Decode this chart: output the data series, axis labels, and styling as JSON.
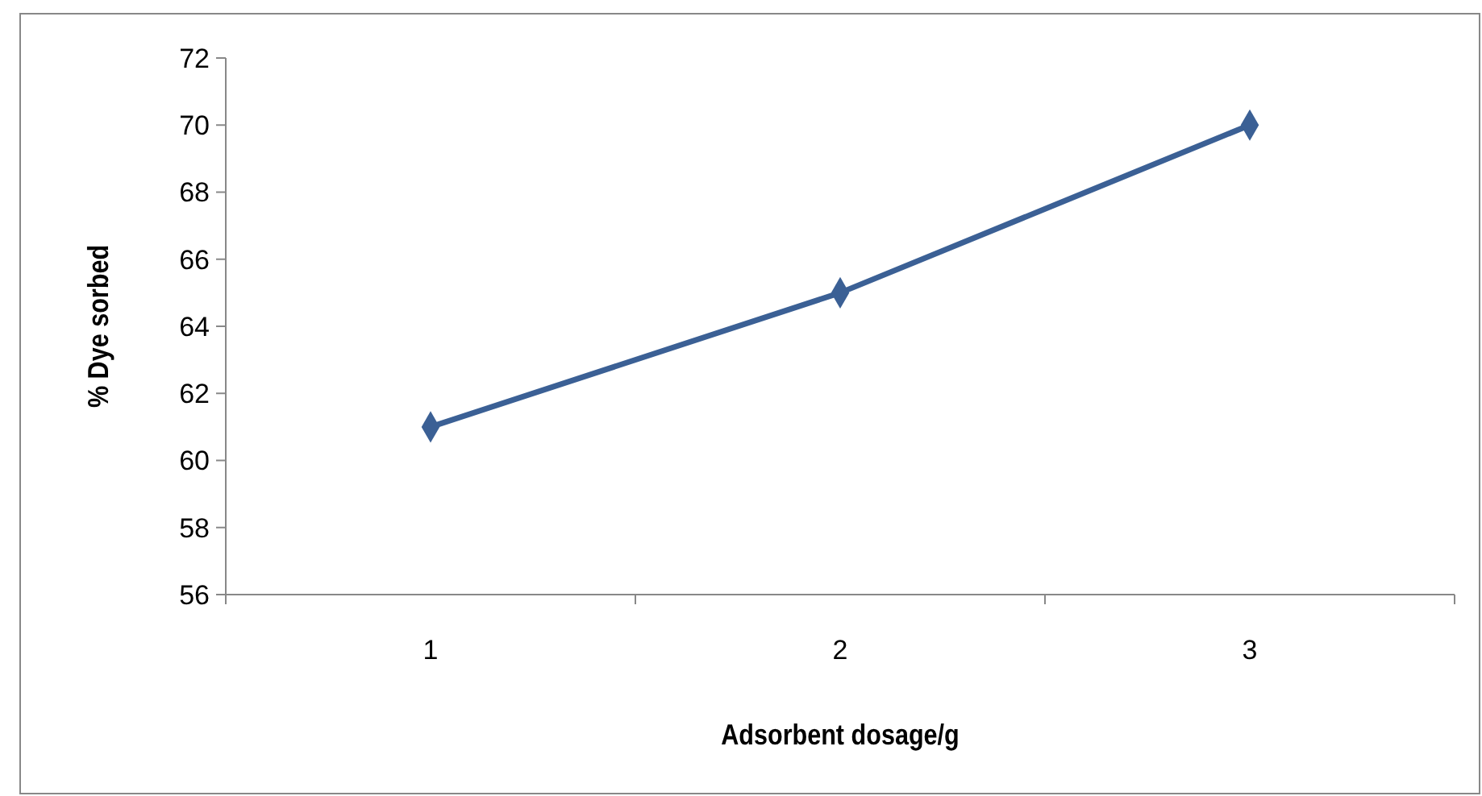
{
  "chart_data": {
    "type": "line",
    "xlabel": "Adsorbent dosage/g",
    "ylabel": "% Dye sorbed",
    "categories": [
      "1",
      "2",
      "3"
    ],
    "series": [
      {
        "color": "#3b6095",
        "values": [
          61,
          65,
          70
        ]
      }
    ],
    "ylim": [
      56,
      72
    ],
    "yticks": [
      56,
      58,
      60,
      62,
      64,
      66,
      68,
      70,
      72
    ],
    "marker": "diamond",
    "line_style": "solid",
    "grid": false
  }
}
